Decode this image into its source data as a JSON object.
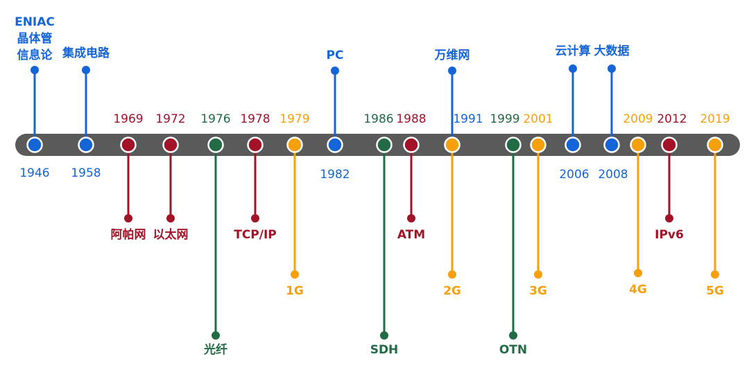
{
  "colors": {
    "blue": "#1565d8",
    "red": "#a31328",
    "green": "#226b45",
    "orange": "#f7a00e",
    "bar": "#5a5a5a"
  },
  "events": [
    {
      "year": "1946",
      "color": "blue",
      "label": [
        "ENIAC",
        "晶体管",
        "信息论"
      ]
    },
    {
      "year": "1958",
      "color": "blue",
      "label": [
        "集成电路"
      ]
    },
    {
      "year": "1969",
      "color": "red",
      "label": [
        "阿帕网"
      ]
    },
    {
      "year": "1972",
      "color": "red",
      "label": [
        "以太网"
      ]
    },
    {
      "year": "1976",
      "color": "green",
      "label": [
        "光纤"
      ]
    },
    {
      "year": "1978",
      "color": "red",
      "label": [
        "TCP/IP"
      ]
    },
    {
      "year": "1979",
      "color": "orange",
      "label": [
        "1G"
      ]
    },
    {
      "year": "1982",
      "color": "blue",
      "label": [
        "PC"
      ]
    },
    {
      "year": "1986",
      "color": "green",
      "label": [
        "SDH"
      ]
    },
    {
      "year": "1988",
      "color": "red",
      "label": [
        "ATM"
      ]
    },
    {
      "year": "1991",
      "color": "blue",
      "label": [
        "万维网"
      ]
    },
    {
      "year": "1999",
      "color": "green",
      "label": [
        "OTN"
      ]
    },
    {
      "year": "2001",
      "color": "orange",
      "label": [
        "3G"
      ]
    },
    {
      "year": "2006",
      "color": "blue",
      "label": [
        "云计算"
      ]
    },
    {
      "year": "2008",
      "color": "blue",
      "label": [
        "大数据"
      ]
    },
    {
      "year": "2009",
      "color": "orange",
      "label": [
        "4G"
      ]
    },
    {
      "year": "2012",
      "color": "red",
      "label": [
        "IPv6"
      ]
    },
    {
      "year": "2019",
      "color": "orange",
      "label": [
        "5G"
      ]
    }
  ],
  "extra_labels": [
    {
      "text": "2G",
      "color": "orange"
    }
  ]
}
